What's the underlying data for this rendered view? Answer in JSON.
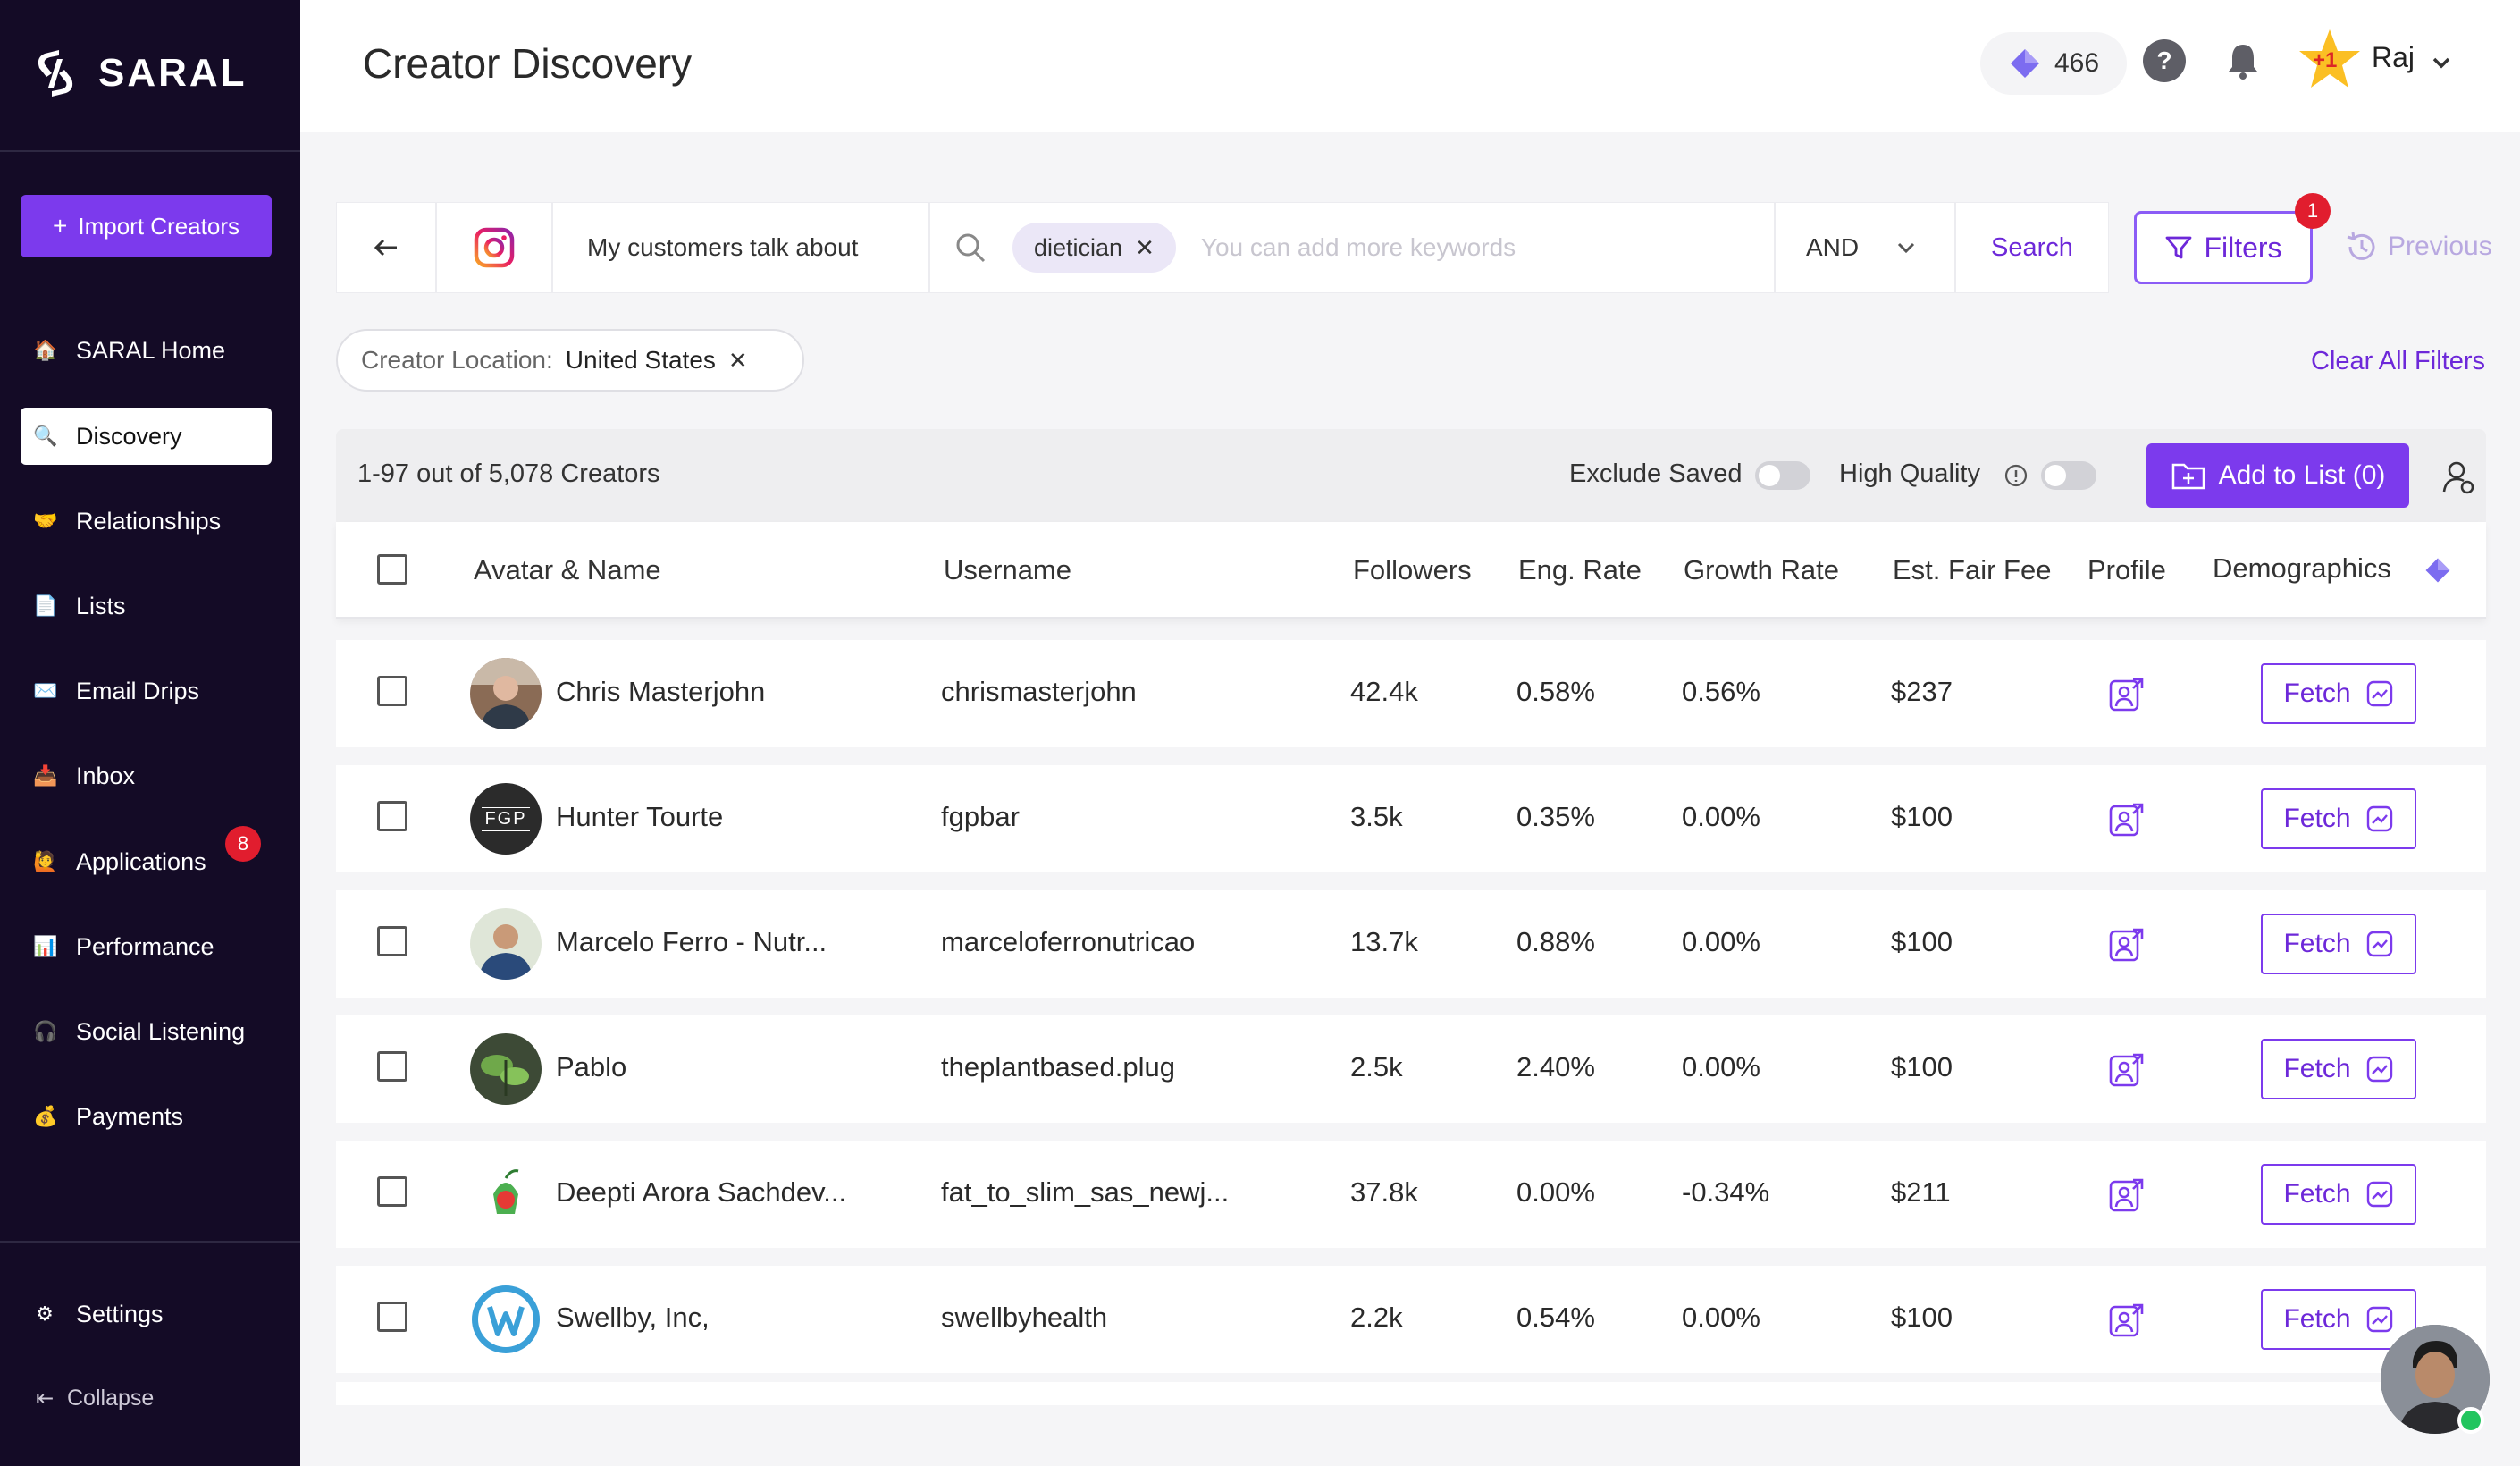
{
  "brand": {
    "name": "SARAL",
    "accent": "#7c3aed",
    "sidebar_bg": "#140b26"
  },
  "sidebar": {
    "import_button": "Import Creators",
    "items": [
      {
        "label": "SARAL Home",
        "icon": "house-icon",
        "emoji": "🏠"
      },
      {
        "label": "Discovery",
        "icon": "magnifier-icon",
        "emoji": "🔍"
      },
      {
        "label": "Relationships",
        "icon": "handshake-icon",
        "emoji": "🤝"
      },
      {
        "label": "Lists",
        "icon": "document-icon",
        "emoji": "📄"
      },
      {
        "label": "Email Drips",
        "icon": "envelope-icon",
        "emoji": "✉️"
      },
      {
        "label": "Inbox",
        "icon": "inbox-tray-icon",
        "emoji": "📥"
      },
      {
        "label": "Applications",
        "icon": "applications-icon",
        "emoji": "🙋",
        "badge": "8"
      },
      {
        "label": "Performance",
        "icon": "bar-chart-icon",
        "emoji": "📊"
      },
      {
        "label": "Social Listening",
        "icon": "social-listening-icon",
        "emoji": "🎧"
      },
      {
        "label": "Payments",
        "icon": "money-bag-icon",
        "emoji": "💰"
      }
    ],
    "settings": "Settings",
    "collapse": "Collapse"
  },
  "header": {
    "title": "Creator Discovery",
    "credits": "466",
    "star_badge": "+1",
    "user": "Raj"
  },
  "search": {
    "mode": "My customers talk about",
    "keyword_chip": "dietician",
    "placeholder": "You can add more keywords",
    "operator": "AND",
    "search_button": "Search",
    "filters_button": "Filters",
    "filters_count": "1",
    "previous": "Previous"
  },
  "location_filter": {
    "label": "Creator Location:",
    "value": "United States"
  },
  "clear_all": "Clear All Filters",
  "results": {
    "count_text": "1-97 out of 5,078 Creators",
    "exclude_saved": "Exclude Saved",
    "high_quality": "High Quality",
    "add_to_list": "Add to List (0)"
  },
  "table": {
    "columns": [
      "Avatar & Name",
      "Username",
      "Followers",
      "Eng. Rate",
      "Growth Rate",
      "Est. Fair Fee",
      "Profile",
      "Demographics"
    ],
    "fetch_label": "Fetch",
    "rows": [
      {
        "name": "Chris Masterjohn",
        "username": "chrismasterjohn",
        "followers": "42.4k",
        "eng_rate": "0.58%",
        "growth_rate": "0.56%",
        "fee": "$237"
      },
      {
        "name": "Hunter Tourte",
        "username": "fgpbar",
        "followers": "3.5k",
        "eng_rate": "0.35%",
        "growth_rate": "0.00%",
        "fee": "$100",
        "avatar_text": "FGP"
      },
      {
        "name": "Marcelo Ferro - Nutr...",
        "username": "marceloferronutricao",
        "followers": "13.7k",
        "eng_rate": "0.88%",
        "growth_rate": "0.00%",
        "fee": "$100"
      },
      {
        "name": "Pablo",
        "username": "theplantbased.plug",
        "followers": "2.5k",
        "eng_rate": "2.40%",
        "growth_rate": "0.00%",
        "fee": "$100"
      },
      {
        "name": "Deepti Arora Sachdev...",
        "username": "fat_to_slim_sas_newj...",
        "followers": "37.8k",
        "eng_rate": "0.00%",
        "growth_rate": "-0.34%",
        "fee": "$211"
      },
      {
        "name": "Swellby, Inc,",
        "username": "swellbyhealth",
        "followers": "2.2k",
        "eng_rate": "0.54%",
        "growth_rate": "0.00%",
        "fee": "$100"
      }
    ]
  }
}
